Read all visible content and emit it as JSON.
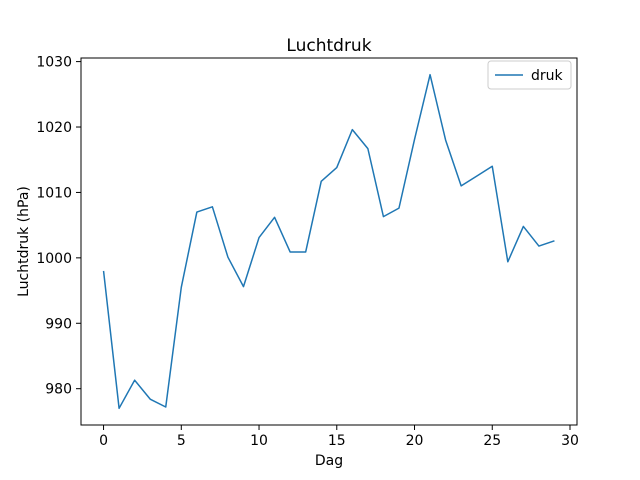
{
  "chart_data": {
    "type": "line",
    "title": "Luchtdruk",
    "xlabel": "Dag",
    "ylabel": "Luchtdruk (hPa)",
    "grid": false,
    "legend_position": "upper right",
    "xlim": [
      -1.45,
      30.45
    ],
    "ylim": [
      974.45,
      1030.55
    ],
    "xticks": [
      0,
      5,
      10,
      15,
      20,
      25,
      30
    ],
    "yticks": [
      980,
      990,
      1000,
      1010,
      1020,
      1030
    ],
    "x": [
      0,
      1,
      2,
      3,
      4,
      5,
      6,
      7,
      8,
      9,
      10,
      11,
      12,
      13,
      14,
      15,
      16,
      17,
      18,
      19,
      20,
      21,
      22,
      23,
      24,
      25,
      26,
      27,
      28,
      29
    ],
    "series": [
      {
        "name": "druk",
        "color": "#1f77b4",
        "values": [
          998.0,
          977.0,
          981.3,
          978.4,
          977.2,
          995.5,
          1007.0,
          1007.8,
          1000.1,
          995.6,
          1003.1,
          1006.2,
          1000.9,
          1000.9,
          1011.7,
          1013.8,
          1019.6,
          1016.7,
          1006.3,
          1007.6,
          1018.1,
          1028.0,
          1018.0,
          1011.0,
          1012.5,
          1014.0,
          999.4,
          1004.8,
          1001.8,
          1002.6
        ]
      }
    ],
    "colors": {
      "line": "#1f77b4",
      "spine": "#000000",
      "background": "#ffffff",
      "legend_border": "#cccccc"
    }
  }
}
